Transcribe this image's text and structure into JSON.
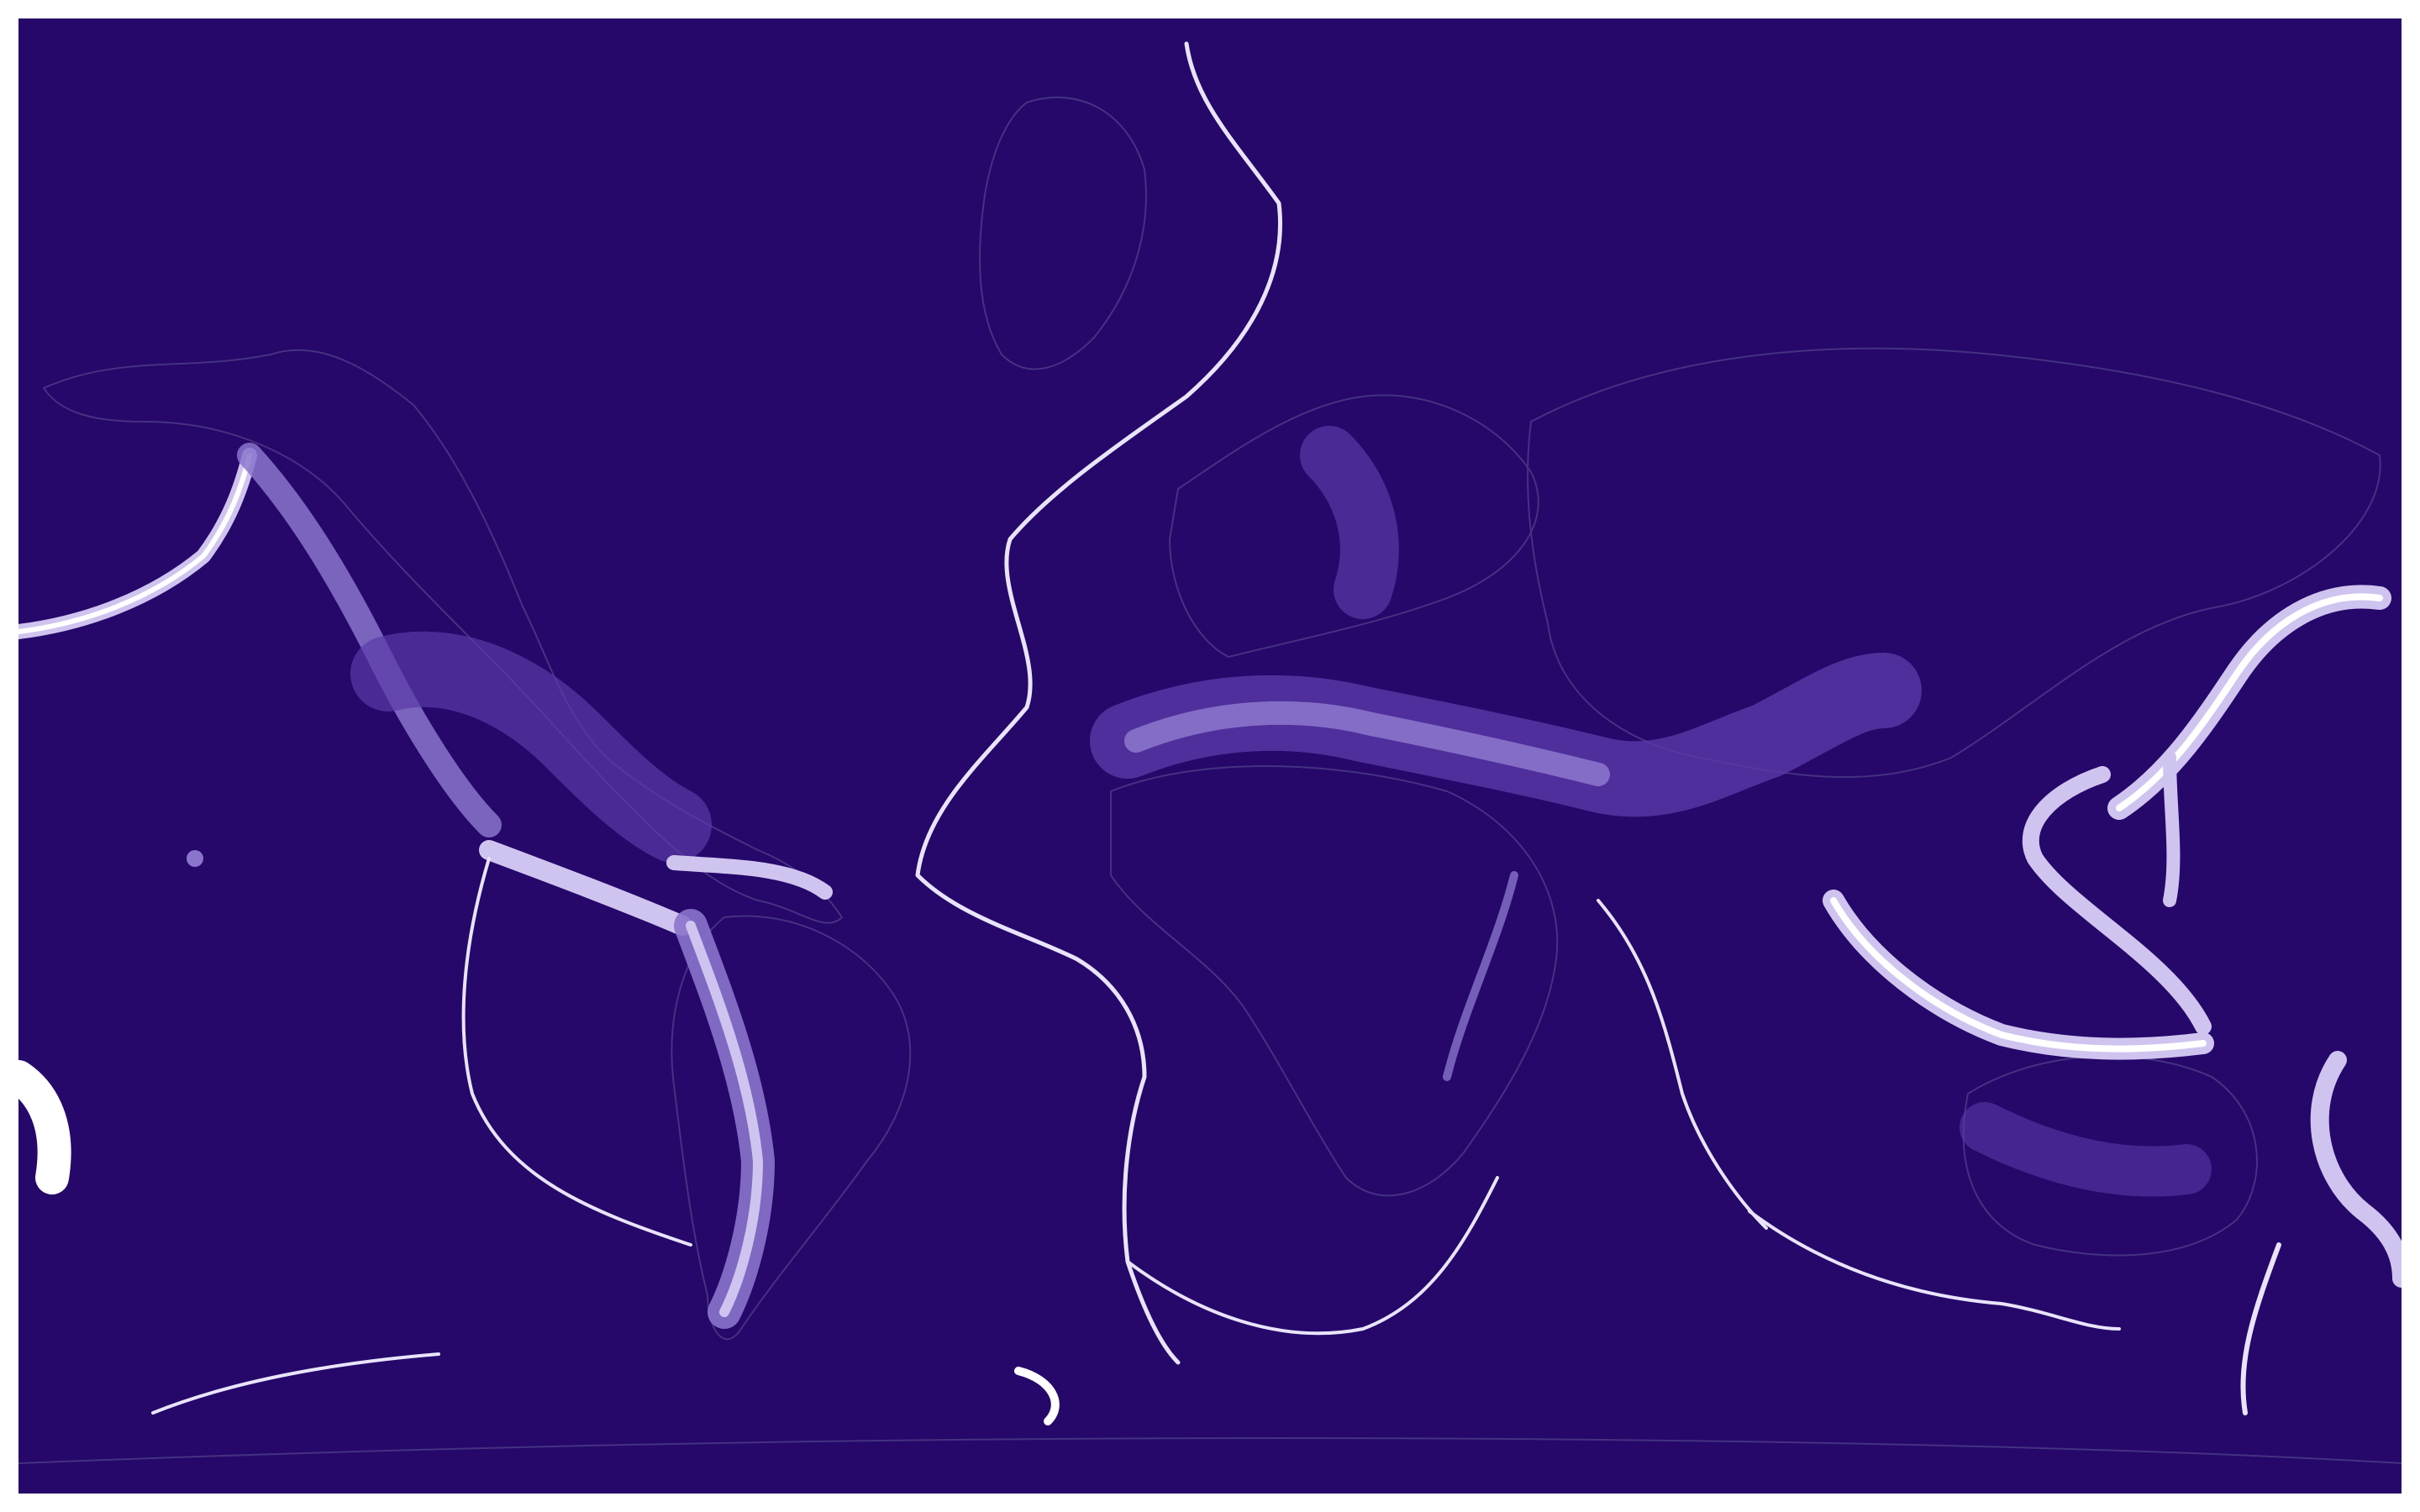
{
  "map": {
    "type": "earthquake-density-map",
    "projection": "equirectangular",
    "labels_visible": false,
    "colors": {
      "background": "#26076a",
      "coastline": "#4a3a86",
      "low": "#5a3aa8",
      "mid": "#8a74cc",
      "high": "#cfc4ef",
      "peak": "#ffffff"
    }
  }
}
